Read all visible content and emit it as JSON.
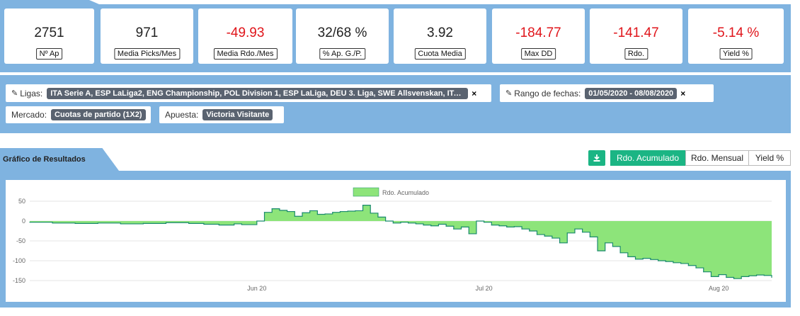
{
  "stats": [
    {
      "value": "2751",
      "label": "Nº Ap",
      "negative": false
    },
    {
      "value": "971",
      "label": "Media Picks/Mes",
      "negative": false
    },
    {
      "value": "-49.93",
      "label": "Media Rdo./Mes",
      "negative": true
    },
    {
      "value": "32/68 %",
      "label": "% Ap. G./P.",
      "negative": false
    },
    {
      "value": "3.92",
      "label": "Cuota Media",
      "negative": false
    },
    {
      "value": "-184.77",
      "label": "Max DD",
      "negative": true
    },
    {
      "value": "-141.47",
      "label": "Rdo.",
      "negative": true
    },
    {
      "value": "-5.14 %",
      "label": "Yield %",
      "negative": true
    }
  ],
  "filters": {
    "ligas_label": "Ligas:",
    "ligas_value": "ITA Serie A, ESP LaLiga2, ENG Championship, POL Division 1, ESP LaLiga, DEU 3. Liga, SWE Allsvenskan, ITA Serie B ...",
    "fechas_label": "Rango de fechas:",
    "fechas_value": "01/05/2020 - 08/08/2020",
    "mercado_label": "Mercado:",
    "mercado_value": "Cuotas de partido (1X2)",
    "apuesta_label": "Apuesta:",
    "apuesta_value": "Victoria Visitante",
    "remove_glyph": "×"
  },
  "chart_section": {
    "title": "Gráfico de Resultados",
    "buttons": {
      "acumulado": "Rdo. Acumulado",
      "mensual": "Rdo. Mensual",
      "yield": "Yield %"
    },
    "active": "acumulado"
  },
  "colors": {
    "accent": "#1bb584",
    "band": "#7fb3e0",
    "fill": "#8de47a",
    "line": "#1a8a6e",
    "negative": "#e0151b"
  },
  "chart_data": {
    "type": "area",
    "legend": [
      "Rdo. Acumulado"
    ],
    "legend_position": "top-center",
    "x_ticks": [
      "Jun 20",
      "Jul 20",
      "Aug 20"
    ],
    "x_tick_dates": [
      "2020-06-01",
      "2020-07-01",
      "2020-08-01"
    ],
    "x_range": [
      "2020-05-02",
      "2020-08-08"
    ],
    "ylim": [
      -150,
      50
    ],
    "y_ticks": [
      50,
      0,
      -50,
      -100,
      -150
    ],
    "grid": "horizontal",
    "series": [
      {
        "name": "Rdo. Acumulado",
        "x": [
          "2020-05-02",
          "2020-05-05",
          "2020-05-08",
          "2020-05-11",
          "2020-05-14",
          "2020-05-17",
          "2020-05-20",
          "2020-05-23",
          "2020-05-25",
          "2020-05-27",
          "2020-05-29",
          "2020-05-30",
          "2020-06-01",
          "2020-06-02",
          "2020-06-03",
          "2020-06-04",
          "2020-06-05",
          "2020-06-06",
          "2020-06-07",
          "2020-06-08",
          "2020-06-09",
          "2020-06-10",
          "2020-06-11",
          "2020-06-12",
          "2020-06-13",
          "2020-06-14",
          "2020-06-15",
          "2020-06-16",
          "2020-06-17",
          "2020-06-18",
          "2020-06-19",
          "2020-06-20",
          "2020-06-21",
          "2020-06-22",
          "2020-06-23",
          "2020-06-24",
          "2020-06-25",
          "2020-06-26",
          "2020-06-27",
          "2020-06-28",
          "2020-06-29",
          "2020-06-30",
          "2020-07-01",
          "2020-07-02",
          "2020-07-03",
          "2020-07-04",
          "2020-07-05",
          "2020-07-06",
          "2020-07-07",
          "2020-07-08",
          "2020-07-09",
          "2020-07-10",
          "2020-07-11",
          "2020-07-12",
          "2020-07-13",
          "2020-07-14",
          "2020-07-15",
          "2020-07-16",
          "2020-07-17",
          "2020-07-18",
          "2020-07-19",
          "2020-07-20",
          "2020-07-21",
          "2020-07-22",
          "2020-07-23",
          "2020-07-24",
          "2020-07-25",
          "2020-07-26",
          "2020-07-27",
          "2020-07-28",
          "2020-07-29",
          "2020-07-30",
          "2020-07-31",
          "2020-08-01",
          "2020-08-02",
          "2020-08-03",
          "2020-08-04",
          "2020-08-05",
          "2020-08-06",
          "2020-08-07",
          "2020-08-08"
        ],
        "values": [
          -3,
          -5,
          -6,
          -5,
          -7,
          -6,
          -4,
          -6,
          -8,
          -10,
          -7,
          -9,
          0,
          22,
          31,
          27,
          24,
          12,
          21,
          26,
          17,
          18,
          22,
          24,
          25,
          26,
          40,
          20,
          10,
          0,
          -5,
          -3,
          -5,
          -7,
          -10,
          -12,
          -8,
          -13,
          -20,
          -15,
          -32,
          0,
          -3,
          -10,
          -12,
          -15,
          -14,
          -20,
          -25,
          -34,
          -38,
          -43,
          -55,
          -30,
          -20,
          -28,
          -40,
          -75,
          -55,
          -64,
          -80,
          -90,
          -96,
          -94,
          -97,
          -100,
          -102,
          -105,
          -107,
          -112,
          -118,
          -128,
          -140,
          -135,
          -142,
          -145,
          -140,
          -138,
          -136,
          -137,
          -142
        ]
      }
    ]
  }
}
